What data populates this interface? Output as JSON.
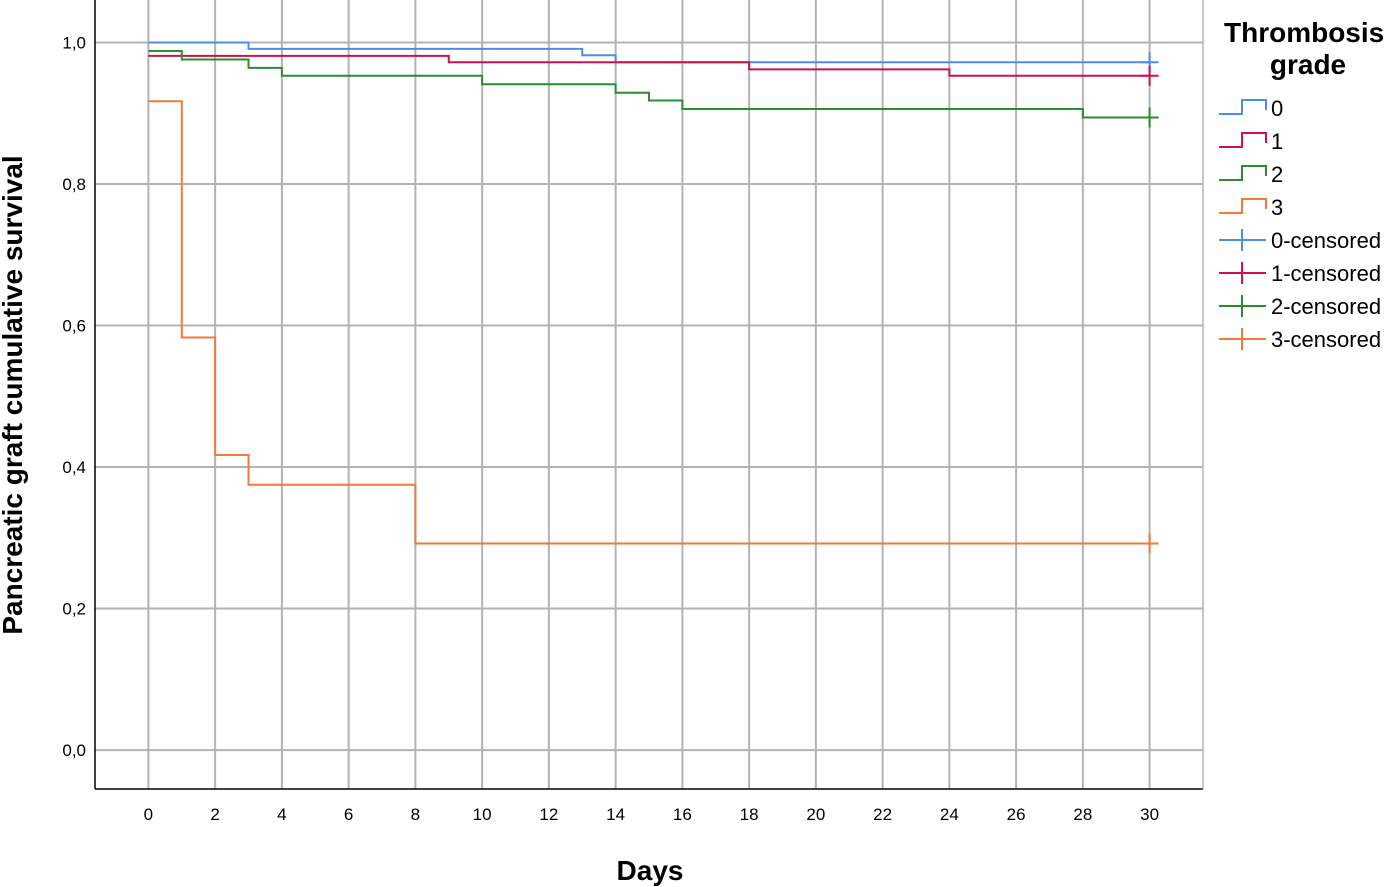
{
  "chart_data": {
    "type": "line",
    "subtype": "kaplan-meier-step",
    "xlabel": "Days",
    "ylabel": "Pancreatic graft cumulative survival",
    "xlim": [
      -1.6,
      31.6
    ],
    "ylim": [
      -0.055,
      1.06
    ],
    "xticks": [
      0,
      2,
      4,
      6,
      8,
      10,
      12,
      14,
      16,
      18,
      20,
      22,
      24,
      26,
      28,
      30
    ],
    "xtick_labels": [
      "0",
      "2",
      "4",
      "6",
      "8",
      "10",
      "12",
      "14",
      "16",
      "18",
      "20",
      "22",
      "24",
      "26",
      "28",
      "30"
    ],
    "yticks": [
      0,
      0.2,
      0.4,
      0.6,
      0.8,
      1.0
    ],
    "ytick_labels": [
      "0,0",
      "0,2",
      "0,4",
      "0,6",
      "0,8",
      "1,0"
    ],
    "grid": true,
    "legend_title": "Thrombosis grade",
    "legend_position": "right",
    "series": [
      {
        "name": "0",
        "color": "#4a90e2",
        "censored_label": "0-censored",
        "steps": [
          [
            0,
            1.0
          ],
          [
            3,
            0.991
          ],
          [
            13,
            0.982
          ],
          [
            14,
            0.972
          ]
        ],
        "end_x": 30,
        "censored_at": [
          30
        ]
      },
      {
        "name": "1",
        "color": "#d0104c",
        "censored_label": "1-censored",
        "steps": [
          [
            0,
            0.981
          ],
          [
            9,
            0.972
          ],
          [
            18,
            0.962
          ],
          [
            24,
            0.953
          ]
        ],
        "end_x": 30,
        "censored_at": [
          30
        ]
      },
      {
        "name": "2",
        "color": "#2e8b30",
        "censored_label": "2-censored",
        "steps": [
          [
            0,
            0.988
          ],
          [
            1,
            0.976
          ],
          [
            3,
            0.964
          ],
          [
            4,
            0.953
          ],
          [
            10,
            0.941
          ],
          [
            14,
            0.929
          ],
          [
            15,
            0.918
          ],
          [
            16,
            0.906
          ],
          [
            28,
            0.894
          ]
        ],
        "end_x": 30,
        "censored_at": [
          30
        ]
      },
      {
        "name": "3",
        "color": "#f07a3a",
        "censored_label": "3-censored",
        "steps": [
          [
            0,
            0.917
          ],
          [
            1,
            0.583
          ],
          [
            2,
            0.417
          ],
          [
            3,
            0.375
          ],
          [
            8,
            0.292
          ]
        ],
        "end_x": 30,
        "censored_at": [
          30
        ]
      }
    ]
  }
}
